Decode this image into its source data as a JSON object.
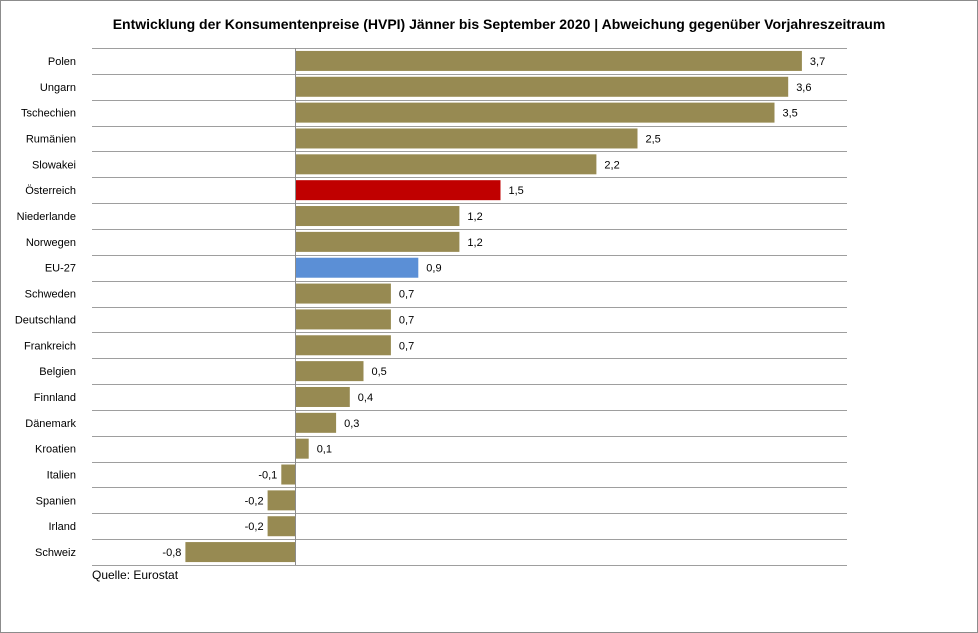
{
  "chart_data": {
    "type": "bar",
    "orientation": "horizontal",
    "title": "Entwicklung der Konsumentenpreise (HVPI) Jänner bis September 2020 | Abweichung gegenüber Vorjahreszeitraum",
    "source": "Quelle:  Eurostat",
    "categories": [
      "Polen",
      "Ungarn",
      "Tschechien",
      "Rumänien",
      "Slowakei",
      "Österreich",
      "Niederlande",
      "Norwegen",
      "EU-27",
      "Schweden",
      "Deutschland",
      "Frankreich",
      "Belgien",
      "Finnland",
      "Dänemark",
      "Kroatien",
      "Italien",
      "Spanien",
      "Irland",
      "Schweiz"
    ],
    "values": [
      3.7,
      3.6,
      3.5,
      2.5,
      2.2,
      1.5,
      1.2,
      1.2,
      0.9,
      0.7,
      0.7,
      0.7,
      0.5,
      0.4,
      0.3,
      0.1,
      -0.1,
      -0.2,
      -0.2,
      -0.8
    ],
    "value_labels": [
      "3,7",
      "3,6",
      "3,5",
      "2,5",
      "2,2",
      "1,5",
      "1,2",
      "1,2",
      "0,9",
      "0,7",
      "0,7",
      "0,7",
      "0,5",
      "0,4",
      "0,3",
      "0,1",
      "-0,1",
      "-0,2",
      "-0,2",
      "-0,8"
    ],
    "xlim": [
      -0.8,
      3.9
    ],
    "grid": true,
    "legend": "none",
    "colors": {
      "default": "#978A52",
      "Österreich": "#C00000",
      "EU-27": "#5B8FD6",
      "grid": "#9e9e9e",
      "axis": "#8c8c8c"
    }
  }
}
